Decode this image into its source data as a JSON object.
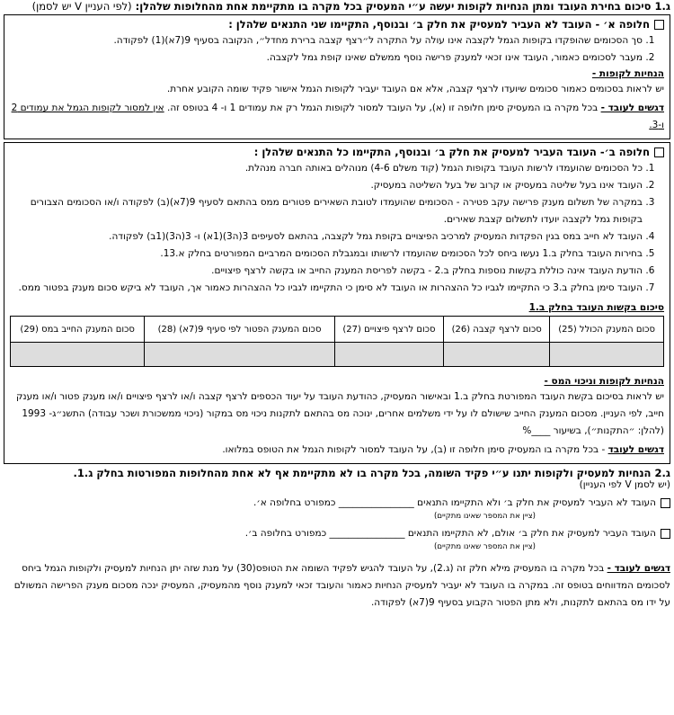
{
  "g1": {
    "title": "ג.1 סיכום בחירת העובד ומתן הנחיות לקופות יעשה ע״י המעסיק בכל מקרה בו מתקיימת אחת מהחלופות שלהלן:",
    "title_note": "(לפי העניין V יש לסמן)",
    "option_a": {
      "title": "חלופה א׳ - העובד לא העביר למעסיק את חלק ב׳ ובנוסף, התקיימו שני התנאים שלהלן :",
      "items": [
        "סך הסכומים שהופקדו בקופות הגמל לקצבה אינו עולה על התקרה ל״רצף קצבה ברירת מחדל״, הנקובה בסעיף 9(7א)(1) לפקודה.",
        "מעבר לסכומים כאמור, העובד אינו זכאי למענק פרישה נוסף ממשלם שאינו קופת גמל לקצבה."
      ],
      "funds_heading": "הנחיות לקופות -",
      "funds_text": "יש לראות בסכומים כאמור סכומים שיועדו לרצף קצבה, אלא אם העובד יעביר לקופות הגמל אישור פקיד שומה הקובע אחרת.",
      "employee_label": "דגשים לעובד -",
      "employee_text": "בכל מקרה בו המעסיק סימן חלופה זו (א), על העובד למסור לקופות הגמל רק את עמודים 1 ו- 4 בטופס זה.",
      "employee_emphasis": "אין למסור לקופות הגמל את עמודים 2 ו-3."
    },
    "option_b": {
      "title": "חלופה ב׳- העובד העביר למעסיק את חלק ב׳ ובנוסף, התקיימו כל התנאים שלהלן :",
      "items": [
        "כל הסכומים שהועמדו לרשות העובד בקופות הגמל (קוד משלם 4-6) מנוהלים באותה חברה מנהלת.",
        "העובד אינו בעל שליטה במעסיק או קרוב של בעל השליטה במעסיק.",
        "במקרה של תשלום מענק פרישה עקב פטירה - הסכומים שהועמדו לטובת השאירים פטורים ממס בהתאם לסעיף 9(7א)(ב) לפקודה ו/או הסכומים הצבורים בקופות גמל לקצבה יועדו לתשלום קצבת שאירים.",
        "העובד לא חייב במס בגין הפקדות המעסיק למרכיב הפיצויים בקופת גמל לקצבה, בהתאם לסעיפים 3(ה3)(1א) ו- 3(ה3)(1ב) לפקודה.",
        "בחירות העובד בחלק ב.1 נעשו ביחס לכל הסכומים שהועמדו לרשותו ובמגבלת הסכומים המרביים המפורטים בחלק א.13.",
        "הודעת העובד אינה כוללת בקשות נוספות בחלק ב.2 - בקשה לפריסת המענק החייב או בקשה לרצף פיצויים.",
        "העובד סימן בחלק ב.3 כי התקיימו לגביו כל ההצהרות או העובד לא סימן כי התקיימו לגביו כל ההצהרות כאמור אך, העובד לא ביקש סכום מענק בפטור ממס."
      ],
      "summary_heading": "סיכום בקשות העובד בחלק ב.1",
      "table_headers": [
        "סכום המענק הכולל (25)",
        "סכום לרצף קצבה (26)",
        "סכום לרצף פיצויים (27)",
        "סכום המענק הפטור לפי סעיף 9(7א) (28)",
        "סכום המענק החייב במס (29)"
      ],
      "funds_heading": "הנחיות לקופות וניכוי המס -",
      "funds_text": "יש לראות בסיכום בקשת העובד המפורטת בחלק ב.1 ובאישור המעסיק, כהודעת העובד על יעוד הכספים לרצף קצבה ו/או לרצף פיצויים ו/או מענק פטור ו/או מענק חייב, לפי העניין. מסכום המענק החייב שישולם לו על ידי משלמים אחרים, ינוכה מס בהתאם לתקנות ניכוי מס במקור (ניכוי ממשכורת ושכר עבודה) התשנ״ג- 1993 (להלן: ״התקנות״), בשיעור ____%",
      "employee_label": "דגשים לעובד",
      "employee_text": "- בכל מקרה בו המעסיק סימן חלופה זו (ב), על העובד למסור לקופות הגמל את הטופס במלואו."
    }
  },
  "g2": {
    "title": "ג.2 הנחיות למעסיק ולקופות יתנו ע״י פקיד השומה, בכל מקרה בו לא מתקיימת אף לא אחת מהחלופות המפורטות בחלק ג.1.",
    "title_note": "(יש לסמן V לפי העניין)",
    "choices": [
      {
        "text": "העובד לא העביר למעסיק את חלק ב׳ ולא התקיימו התנאים ________________ כמפורט בחלופה א׳.",
        "hint": "(ציין את המספר שאינו מתקיים)"
      },
      {
        "text": "העובד העביר למעסיק את חלק ב׳ אולם, לא התקיימו התנאים ________________ כמפורט בחלופה ב׳.",
        "hint": "(ציין את המספר שאינו מתקיים)"
      }
    ],
    "employee_label": "דגשים לעובד -",
    "employee_text": "בכל מקרה בו המעסיק מילא חלק זה (ג.2), על העובד להגיש לפקיד השומה את הטופס(30) על מנת שזה יתן הנחיות למעסיק ולקופות הגמל ביחס לסכומים המדווחים בטופס זה. במקרה בו העובד לא יעביר למעסיק הנחיות כאמור והעובד זכאי למענק נוסף מהמעסיק, המעסיק ינכה מסכום מענק הפרישה המשולם על ידו מס בהתאם לתקנות, ולא מתן הפטור הקבוע בסעיף 9(7א) לפקודה."
  }
}
